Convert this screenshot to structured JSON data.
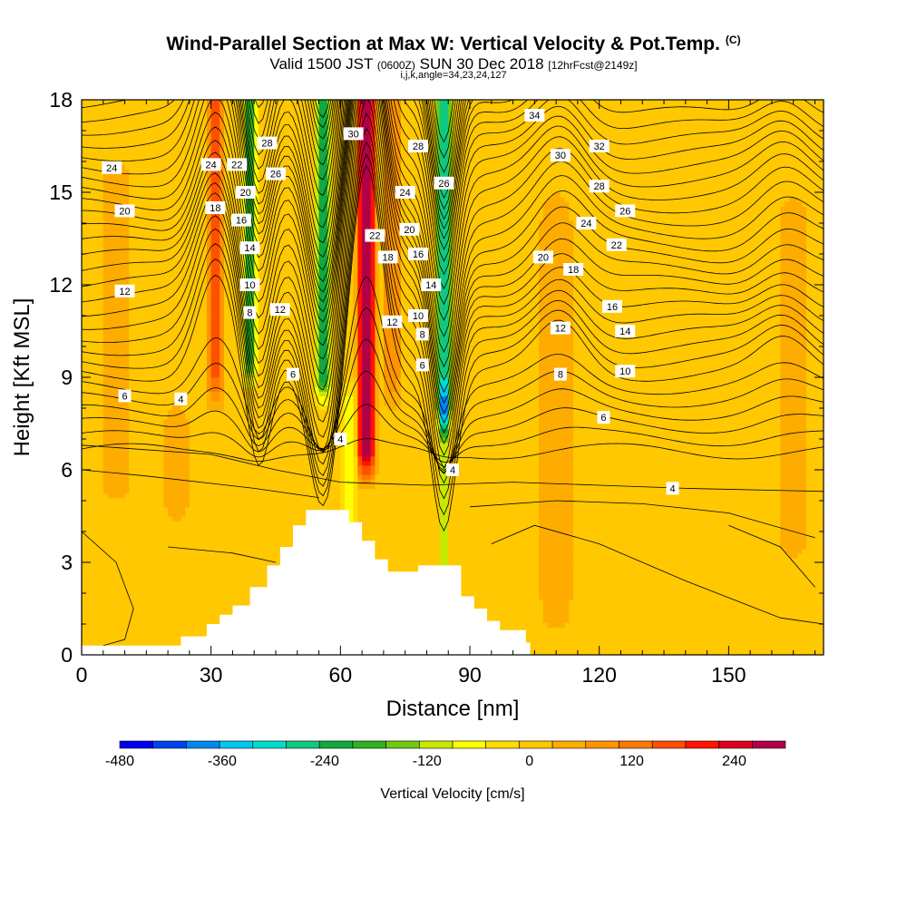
{
  "title": {
    "main": "Wind-Parallel Section at Max W: Vertical Velocity & Pot.Temp.",
    "corner_mark": "(C)",
    "valid_prefix": "Valid 1500 JST",
    "valid_utc": "(0600Z)",
    "valid_date": "SUN 30 Dec 2018",
    "forecast_info": "[12hrFcst@2149z]",
    "indices": "i,j,k,angle=34,23,24,127"
  },
  "colors": {
    "terrain": "#ffffff",
    "contour": "#000000",
    "palette": [
      "#0000ee",
      "#0044ee",
      "#0088ee",
      "#00c8ee",
      "#00dccc",
      "#10c880",
      "#10a840",
      "#30b020",
      "#70c810",
      "#c8e800",
      "#ffff00",
      "#ffdc00",
      "#ffc800",
      "#ffac00",
      "#ff9400",
      "#ff7800",
      "#ff5000",
      "#ff1400",
      "#dd0020",
      "#b00048",
      "#860066",
      "#560088"
    ]
  },
  "chart_data": {
    "type": "heatmap",
    "xlabel": "Distance [nm]",
    "ylabel": "Height [Kft MSL]",
    "xlim": [
      0,
      172
    ],
    "ylim": [
      0,
      18
    ],
    "x_ticks": [
      0,
      30,
      60,
      90,
      120,
      150
    ],
    "y_ticks": [
      0,
      3,
      6,
      9,
      12,
      15,
      18
    ],
    "colorbar": {
      "label": "Vertical Velocity [cm/s]",
      "range": [
        -480,
        300
      ],
      "step": 40,
      "tick_values": [
        -480,
        -360,
        -240,
        -120,
        0,
        120,
        240
      ],
      "tick_labels": [
        "-480",
        "-360",
        "-240",
        "-120",
        "0",
        "120",
        "240"
      ]
    },
    "velocity_field": {
      "background_cm_s": 30,
      "features": [
        {
          "x": 66,
          "half_width_nm": 2.6,
          "ymin": 6.5,
          "ymax": 18,
          "peak_cm_s": 290
        },
        {
          "x": 31,
          "half_width_nm": 2.2,
          "ymin": 9,
          "ymax": 18,
          "peak_cm_s": 170
        },
        {
          "x": 56,
          "half_width_nm": 2.2,
          "ymin": 9,
          "ymax": 18,
          "peak_cm_s": -230
        },
        {
          "x": 84,
          "half_width_nm": 2.2,
          "ymin": 8,
          "ymax": 18,
          "peak_cm_s": -280
        },
        {
          "x": 84,
          "half_width_nm": 1.5,
          "ymin": 2.5,
          "ymax": 8,
          "peak_cm_s": -120
        },
        {
          "x": 39,
          "half_width_nm": 2.0,
          "ymin": 9.5,
          "ymax": 18,
          "peak_cm_s": -180
        },
        {
          "x": 62,
          "half_width_nm": 2.0,
          "ymin": 4.5,
          "ymax": 8,
          "peak_cm_s": -80
        },
        {
          "x": 72,
          "half_width_nm": 2.5,
          "ymin": 9,
          "ymax": 18,
          "peak_cm_s": 110
        },
        {
          "x": 8,
          "half_width_nm": 4,
          "ymin": 6,
          "ymax": 15,
          "peak_cm_s": 70
        },
        {
          "x": 110,
          "half_width_nm": 4,
          "ymin": 1.8,
          "ymax": 14,
          "peak_cm_s": 75
        },
        {
          "x": 165,
          "half_width_nm": 4,
          "ymin": 4,
          "ymax": 14,
          "peak_cm_s": 60
        },
        {
          "x": 22,
          "half_width_nm": 4,
          "ymin": 5,
          "ymax": 7.5,
          "peak_cm_s": 50
        }
      ]
    },
    "potential_temperature_labels_c": [
      {
        "x": 63,
        "y": 16.9,
        "v": "30"
      },
      {
        "x": 78,
        "y": 16.5,
        "v": "28"
      },
      {
        "x": 105,
        "y": 17.5,
        "v": "34"
      },
      {
        "x": 111,
        "y": 16.2,
        "v": "30"
      },
      {
        "x": 120,
        "y": 16.5,
        "v": "32"
      },
      {
        "x": 43,
        "y": 16.6,
        "v": "28"
      },
      {
        "x": 30,
        "y": 15.9,
        "v": "24"
      },
      {
        "x": 36,
        "y": 15.9,
        "v": "22"
      },
      {
        "x": 45,
        "y": 15.6,
        "v": "26"
      },
      {
        "x": 84,
        "y": 15.3,
        "v": "26"
      },
      {
        "x": 120,
        "y": 15.2,
        "v": "28"
      },
      {
        "x": 126,
        "y": 14.4,
        "v": "26"
      },
      {
        "x": 7,
        "y": 15.8,
        "v": "24"
      },
      {
        "x": 38,
        "y": 15.0,
        "v": "20"
      },
      {
        "x": 75,
        "y": 15.0,
        "v": "24"
      },
      {
        "x": 117,
        "y": 14.0,
        "v": "24"
      },
      {
        "x": 31,
        "y": 14.5,
        "v": "18"
      },
      {
        "x": 10,
        "y": 14.4,
        "v": "20"
      },
      {
        "x": 37,
        "y": 14.1,
        "v": "16"
      },
      {
        "x": 76,
        "y": 13.8,
        "v": "20"
      },
      {
        "x": 68,
        "y": 13.6,
        "v": "22"
      },
      {
        "x": 124,
        "y": 13.3,
        "v": "22"
      },
      {
        "x": 39,
        "y": 13.2,
        "v": "14"
      },
      {
        "x": 71,
        "y": 12.9,
        "v": "18"
      },
      {
        "x": 78,
        "y": 13.0,
        "v": "16"
      },
      {
        "x": 107,
        "y": 12.9,
        "v": "20"
      },
      {
        "x": 114,
        "y": 12.5,
        "v": "18"
      },
      {
        "x": 81,
        "y": 12.0,
        "v": "14"
      },
      {
        "x": 10,
        "y": 11.8,
        "v": "12"
      },
      {
        "x": 39,
        "y": 12.0,
        "v": "10"
      },
      {
        "x": 123,
        "y": 11.3,
        "v": "16"
      },
      {
        "x": 39,
        "y": 11.1,
        "v": "8"
      },
      {
        "x": 46,
        "y": 11.2,
        "v": "12"
      },
      {
        "x": 78,
        "y": 11.0,
        "v": "10"
      },
      {
        "x": 72,
        "y": 10.8,
        "v": "12"
      },
      {
        "x": 111,
        "y": 10.6,
        "v": "12"
      },
      {
        "x": 126,
        "y": 10.5,
        "v": "14"
      },
      {
        "x": 79,
        "y": 10.4,
        "v": "8"
      },
      {
        "x": 79,
        "y": 9.4,
        "v": "6"
      },
      {
        "x": 49,
        "y": 9.1,
        "v": "6"
      },
      {
        "x": 111,
        "y": 9.1,
        "v": "8"
      },
      {
        "x": 126,
        "y": 9.2,
        "v": "10"
      },
      {
        "x": 10,
        "y": 8.4,
        "v": "6"
      },
      {
        "x": 23,
        "y": 8.3,
        "v": "4"
      },
      {
        "x": 121,
        "y": 7.7,
        "v": "6"
      },
      {
        "x": 60,
        "y": 7.0,
        "v": "4"
      },
      {
        "x": 86,
        "y": 6.0,
        "v": "4"
      },
      {
        "x": 137,
        "y": 5.4,
        "v": "4"
      }
    ],
    "terrain_profile": [
      [
        16,
        0.3
      ],
      [
        23,
        0.6
      ],
      [
        29,
        1.0
      ],
      [
        32,
        1.3
      ],
      [
        35,
        1.6
      ],
      [
        39,
        2.2
      ],
      [
        43,
        2.9
      ],
      [
        46,
        3.5
      ],
      [
        49,
        4.2
      ],
      [
        52,
        4.7
      ],
      [
        62,
        4.3
      ],
      [
        65,
        3.7
      ],
      [
        68,
        3.1
      ],
      [
        71,
        2.7
      ],
      [
        78,
        2.9
      ],
      [
        88,
        1.9
      ],
      [
        91,
        1.5
      ],
      [
        94,
        1.1
      ],
      [
        97,
        0.8
      ],
      [
        103,
        0.4
      ],
      [
        104,
        0.0
      ]
    ]
  }
}
